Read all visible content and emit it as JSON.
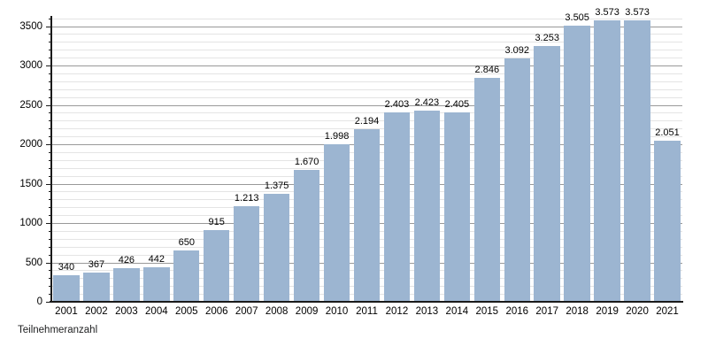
{
  "caption": "Teilnehmeranzahl",
  "colors": {
    "bar": "#9cb5d1",
    "grid_major": "#999999",
    "grid_minor": "#e4e4e4",
    "axis": "#1a1a1a",
    "text": "#000000"
  },
  "chart_data": {
    "type": "bar",
    "title": "",
    "xlabel": "",
    "ylabel": "Teilnehmeranzahl",
    "categories": [
      "2001",
      "2002",
      "2003",
      "2004",
      "2005",
      "2006",
      "2007",
      "2008",
      "2009",
      "2010",
      "2011",
      "2012",
      "2013",
      "2014",
      "2015",
      "2016",
      "2017",
      "2018",
      "2019",
      "2020",
      "2021"
    ],
    "values": [
      340,
      367,
      426,
      442,
      650,
      915,
      1213,
      1375,
      1670,
      1998,
      2194,
      2403,
      2423,
      2405,
      2846,
      3092,
      3253,
      3505,
      3573,
      3573,
      2051
    ],
    "value_labels": [
      "340",
      "367",
      "426",
      "442",
      "650",
      "915",
      "1.213",
      "1.375",
      "1.670",
      "1.998",
      "2.194",
      "2.403",
      "2.423",
      "2.405",
      "2.846",
      "3.092",
      "3.253",
      "3.505",
      "3.573",
      "3.573",
      "2.051"
    ],
    "y_ticks": [
      0,
      500,
      1000,
      1500,
      2000,
      2500,
      3000,
      3500
    ],
    "y_minor_step": 100,
    "y_minor_max": 3600,
    "ylim": [
      0,
      3630
    ],
    "grid": "on",
    "legend": "none",
    "bar_labels_position": "above"
  }
}
